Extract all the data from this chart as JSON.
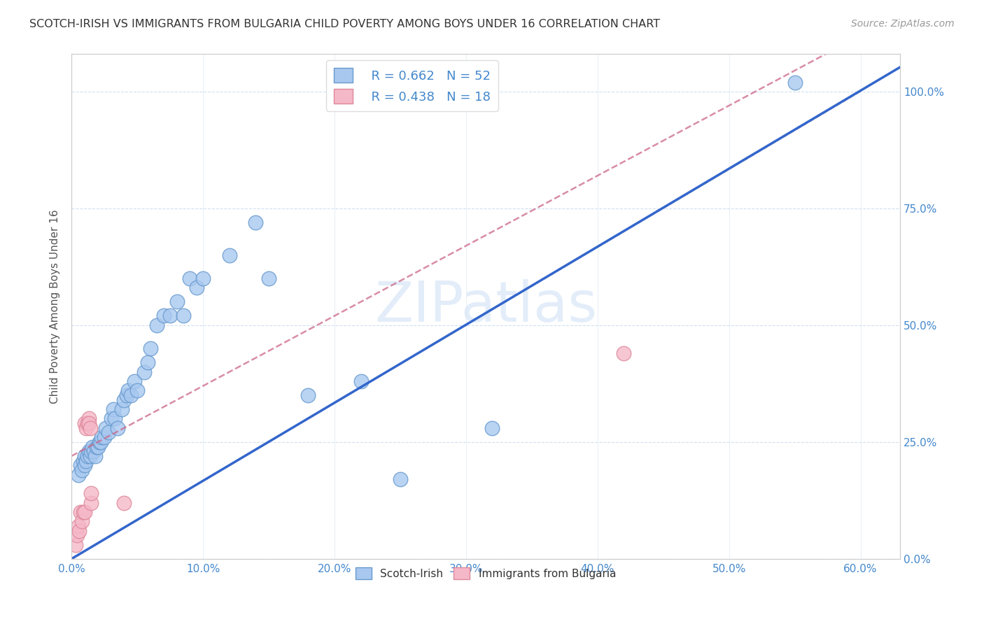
{
  "title": "SCOTCH-IRISH VS IMMIGRANTS FROM BULGARIA CHILD POVERTY AMONG BOYS UNDER 16 CORRELATION CHART",
  "source": "Source: ZipAtlas.com",
  "xlabel_ticks": [
    "0.0%",
    "10.0%",
    "20.0%",
    "30.0%",
    "40.0%",
    "50.0%",
    "60.0%"
  ],
  "ylabel_ticks": [
    "0.0%",
    "25.0%",
    "50.0%",
    "75.0%",
    "100.0%"
  ],
  "xlabel_tick_vals": [
    0.0,
    0.1,
    0.2,
    0.3,
    0.4,
    0.5,
    0.6
  ],
  "ylabel_tick_vals": [
    0.0,
    0.25,
    0.5,
    0.75,
    1.0
  ],
  "ylabel": "Child Poverty Among Boys Under 16",
  "watermark": "ZIPatlas",
  "scotch_irish_R": 0.662,
  "scotch_irish_N": 52,
  "bulgaria_R": 0.438,
  "bulgaria_N": 18,
  "scotch_irish_color": "#a8c8f0",
  "scotch_irish_edge": "#6699cc",
  "bulgaria_color": "#f5b8c8",
  "bulgaria_edge": "#dd8899",
  "regression_blue": "#3366cc",
  "regression_pink": "#cc6688",
  "diagonal_color": "#cccccc",
  "scotch_irish_line_slope": 1.67,
  "scotch_irish_line_intercept": 0.0,
  "bulgaria_line_slope": 1.5,
  "bulgaria_line_intercept": 0.22,
  "scotch_irish_points": [
    [
      0.005,
      0.18
    ],
    [
      0.007,
      0.2
    ],
    [
      0.008,
      0.19
    ],
    [
      0.009,
      0.21
    ],
    [
      0.01,
      0.22
    ],
    [
      0.01,
      0.2
    ],
    [
      0.011,
      0.21
    ],
    [
      0.012,
      0.22
    ],
    [
      0.013,
      0.23
    ],
    [
      0.014,
      0.22
    ],
    [
      0.015,
      0.23
    ],
    [
      0.016,
      0.24
    ],
    [
      0.017,
      0.23
    ],
    [
      0.018,
      0.22
    ],
    [
      0.019,
      0.24
    ],
    [
      0.02,
      0.24
    ],
    [
      0.021,
      0.25
    ],
    [
      0.022,
      0.25
    ],
    [
      0.023,
      0.26
    ],
    [
      0.025,
      0.26
    ],
    [
      0.026,
      0.28
    ],
    [
      0.028,
      0.27
    ],
    [
      0.03,
      0.3
    ],
    [
      0.032,
      0.32
    ],
    [
      0.033,
      0.3
    ],
    [
      0.035,
      0.28
    ],
    [
      0.038,
      0.32
    ],
    [
      0.04,
      0.34
    ],
    [
      0.042,
      0.35
    ],
    [
      0.043,
      0.36
    ],
    [
      0.045,
      0.35
    ],
    [
      0.048,
      0.38
    ],
    [
      0.05,
      0.36
    ],
    [
      0.055,
      0.4
    ],
    [
      0.058,
      0.42
    ],
    [
      0.06,
      0.45
    ],
    [
      0.065,
      0.5
    ],
    [
      0.07,
      0.52
    ],
    [
      0.075,
      0.52
    ],
    [
      0.08,
      0.55
    ],
    [
      0.085,
      0.52
    ],
    [
      0.09,
      0.6
    ],
    [
      0.095,
      0.58
    ],
    [
      0.1,
      0.6
    ],
    [
      0.12,
      0.65
    ],
    [
      0.14,
      0.72
    ],
    [
      0.15,
      0.6
    ],
    [
      0.18,
      0.35
    ],
    [
      0.22,
      0.38
    ],
    [
      0.25,
      0.17
    ],
    [
      0.32,
      0.28
    ],
    [
      0.55,
      1.02
    ]
  ],
  "bulgaria_points": [
    [
      0.003,
      0.03
    ],
    [
      0.004,
      0.05
    ],
    [
      0.005,
      0.07
    ],
    [
      0.006,
      0.06
    ],
    [
      0.007,
      0.1
    ],
    [
      0.008,
      0.08
    ],
    [
      0.009,
      0.1
    ],
    [
      0.01,
      0.1
    ],
    [
      0.01,
      0.29
    ],
    [
      0.011,
      0.28
    ],
    [
      0.012,
      0.29
    ],
    [
      0.013,
      0.3
    ],
    [
      0.013,
      0.29
    ],
    [
      0.014,
      0.28
    ],
    [
      0.015,
      0.12
    ],
    [
      0.015,
      0.14
    ],
    [
      0.04,
      0.12
    ],
    [
      0.42,
      0.44
    ]
  ],
  "xlim": [
    0.0,
    0.63
  ],
  "ylim": [
    0.0,
    1.08
  ]
}
